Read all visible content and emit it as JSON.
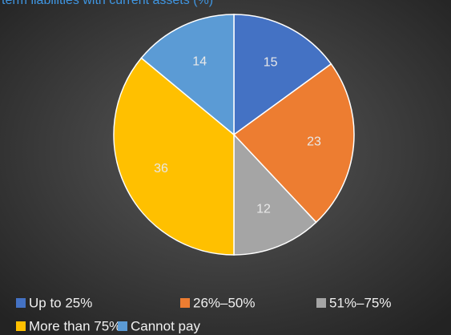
{
  "chart_data": {
    "type": "pie",
    "title": "term liabilities with current assets (%)",
    "categories": [
      "Up to 25%",
      "26%–50%",
      "51%–75%",
      "More than 75%",
      "Cannot pay"
    ],
    "values": [
      15,
      23,
      12,
      36,
      14
    ],
    "colors": [
      "#4472c4",
      "#ed7d31",
      "#a5a5a5",
      "#ffc000",
      "#5b9bd5"
    ],
    "legend": "bottom"
  }
}
